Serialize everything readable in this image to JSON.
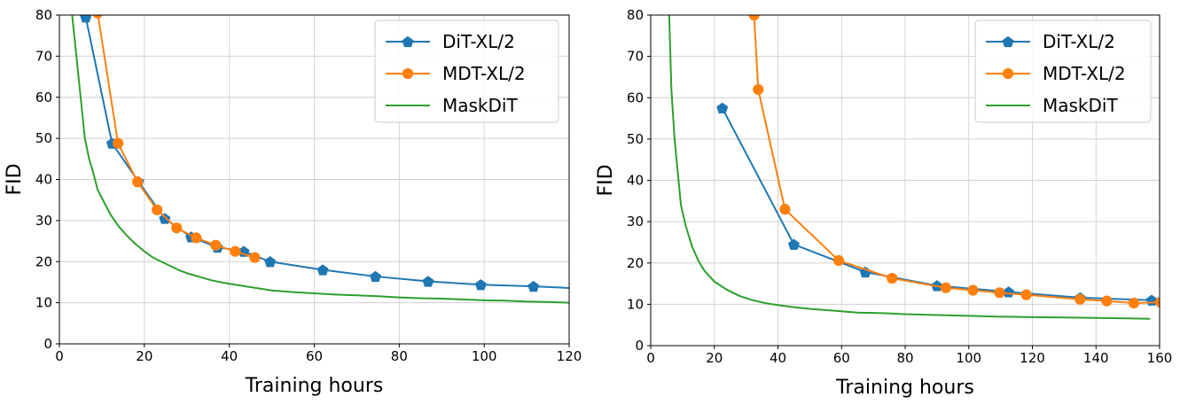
{
  "chart_data": [
    {
      "type": "line",
      "xlabel": "Training hours",
      "ylabel": "FID",
      "xlim": [
        0,
        120
      ],
      "ylim": [
        0,
        80
      ],
      "xticks": [
        0,
        20,
        40,
        60,
        80,
        100,
        120
      ],
      "yticks": [
        0,
        10,
        20,
        30,
        40,
        50,
        60,
        70,
        80
      ],
      "grid": true,
      "legend_position": "top-right",
      "series": [
        {
          "name": "DiT-XL/2",
          "color": "#1f77b4",
          "marker": "pentagon",
          "x": [
            6.2,
            12.4,
            18.6,
            24.8,
            31,
            37.2,
            43.4,
            49.6,
            62,
            74.4,
            86.8,
            99.2,
            111.6,
            124
          ],
          "y": [
            79.5,
            48.8,
            39.5,
            30.5,
            26.0,
            23.5,
            22.5,
            20.0,
            18.0,
            16.4,
            15.2,
            14.4,
            14.0,
            13.4
          ]
        },
        {
          "name": "MDT-XL/2",
          "color": "#ff7f0e",
          "marker": "circle",
          "x": [
            9,
            13.8,
            18.4,
            23,
            27.6,
            32.2,
            36.8,
            41.4,
            46
          ],
          "y": [
            80.5,
            48.8,
            39.4,
            32.6,
            28.2,
            25.8,
            24.0,
            22.5,
            21.0
          ]
        },
        {
          "name": "MaskDiT",
          "color": "#2ca02c",
          "marker": "none",
          "x": [
            3,
            4,
            5,
            6,
            7,
            8,
            9,
            10,
            12,
            14,
            16,
            18,
            20,
            22,
            24,
            26,
            28,
            30,
            32,
            34,
            36,
            38,
            40,
            45,
            50,
            55,
            60,
            65,
            70,
            75,
            80,
            85,
            90,
            95,
            100,
            105,
            110,
            115,
            120
          ],
          "y": [
            80,
            70,
            60,
            50,
            45,
            41.5,
            37.5,
            35.5,
            31.5,
            28.5,
            26.2,
            24.2,
            22.5,
            21.0,
            20.0,
            19.0,
            18.0,
            17.2,
            16.6,
            16.0,
            15.4,
            15.0,
            14.6,
            13.8,
            13.0,
            12.6,
            12.3,
            12.0,
            11.8,
            11.6,
            11.3,
            11.1,
            11.0,
            10.8,
            10.6,
            10.5,
            10.3,
            10.2,
            10.0
          ]
        }
      ]
    },
    {
      "type": "line",
      "xlabel": "Training hours",
      "ylabel": "FID",
      "xlim": [
        0,
        160
      ],
      "ylim": [
        0,
        80
      ],
      "xticks": [
        0,
        20,
        40,
        60,
        80,
        100,
        120,
        140,
        160
      ],
      "yticks": [
        0,
        10,
        20,
        30,
        40,
        50,
        60,
        70,
        80
      ],
      "grid": true,
      "legend_position": "top-right",
      "series": [
        {
          "name": "DiT-XL/2",
          "color": "#1f77b4",
          "marker": "pentagon",
          "x": [
            22.5,
            45,
            67.5,
            90,
            112.5,
            135,
            157.5
          ],
          "y": [
            57.5,
            24.5,
            17.8,
            14.5,
            13.0,
            11.6,
            11.0
          ]
        },
        {
          "name": "MDT-XL/2",
          "color": "#ff7f0e",
          "marker": "circle",
          "x": [
            32.5,
            33.8,
            42.2,
            59.1,
            75.9,
            92.8,
            101.3,
            109.7,
            118.1,
            135,
            143.4,
            151.9,
            160.3
          ],
          "y": [
            80,
            62.0,
            33.0,
            20.6,
            16.3,
            14.0,
            13.4,
            12.8,
            12.3,
            11.2,
            10.8,
            10.3,
            10.5
          ]
        },
        {
          "name": "MaskDiT",
          "color": "#2ca02c",
          "marker": "none",
          "x": [
            5.8,
            6.5,
            7.5,
            8.5,
            9.5,
            11,
            13,
            15,
            17,
            20,
            24,
            28,
            32,
            36,
            40,
            45,
            50,
            55,
            60,
            65,
            70,
            75,
            80,
            90,
            100,
            110,
            120,
            130,
            140,
            150,
            157
          ],
          "y": [
            80,
            62,
            50,
            42,
            34,
            29,
            24,
            20.5,
            18.0,
            15.5,
            13.5,
            12.0,
            11.0,
            10.3,
            9.8,
            9.3,
            8.9,
            8.6,
            8.3,
            8.0,
            7.9,
            7.8,
            7.6,
            7.4,
            7.2,
            7.0,
            6.9,
            6.8,
            6.7,
            6.6,
            6.5
          ]
        }
      ]
    }
  ]
}
